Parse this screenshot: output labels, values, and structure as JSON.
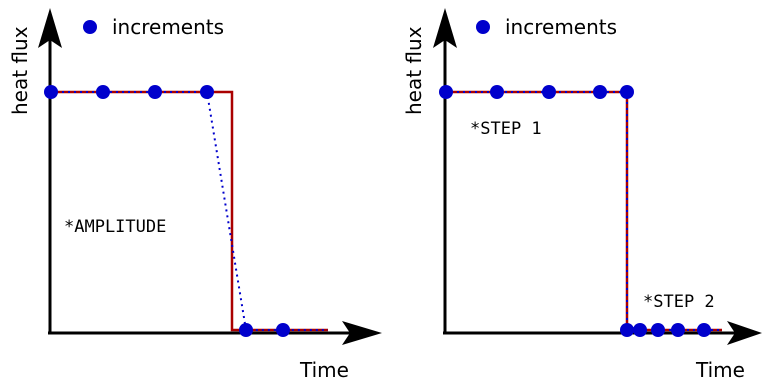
{
  "panels": [
    {
      "legend_label": "increments",
      "ylabel": "heat flux",
      "xlabel": "Time",
      "annotation": "*AMPLITUDE"
    },
    {
      "legend_label": "increments",
      "ylabel": "heat flux",
      "xlabel": "Time",
      "annotation_1": "*STEP 1",
      "annotation_2": "*STEP 2"
    }
  ],
  "colors": {
    "step_line": "#aa0000",
    "increments": "#0000cc",
    "axes": "#000000"
  }
}
